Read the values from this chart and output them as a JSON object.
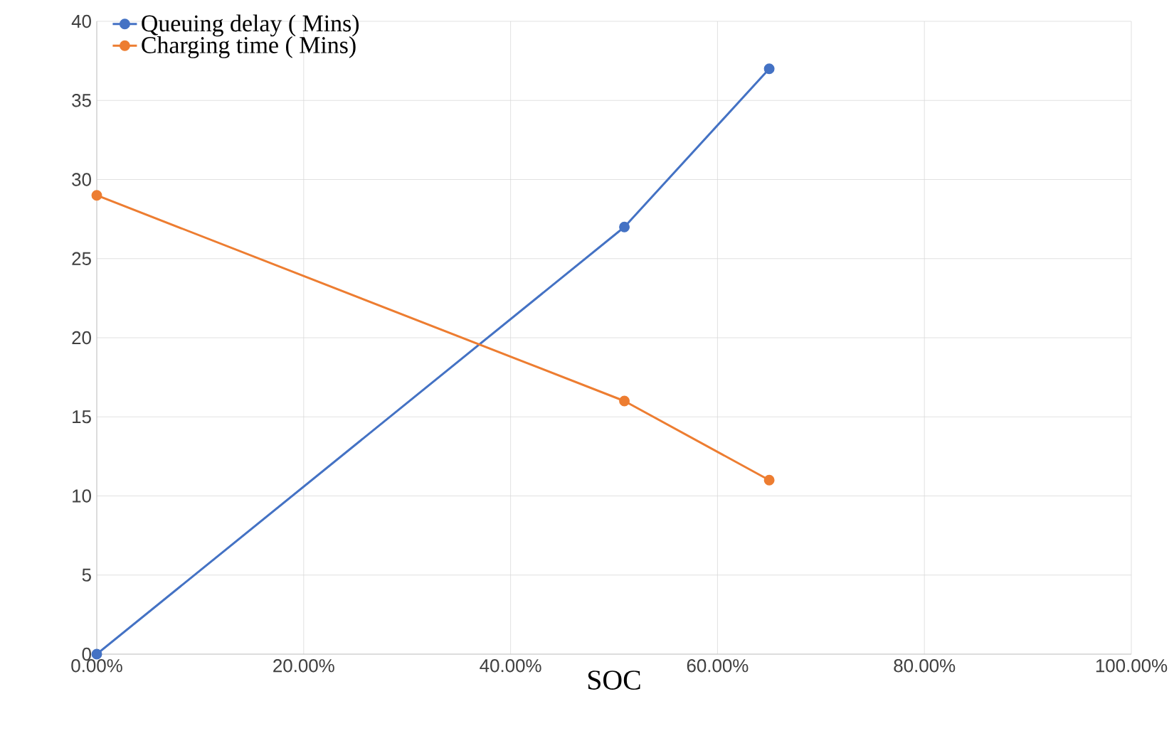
{
  "chart_data": {
    "type": "line",
    "xlabel": "SOC",
    "x": [
      0,
      0.51,
      0.65
    ],
    "series": [
      {
        "name": "Queuing delay ( Mins)",
        "color": "#4472c4",
        "values": [
          0,
          27,
          37
        ]
      },
      {
        "name": "Charging time ( Mins)",
        "color": "#ed7d31",
        "values": [
          29,
          16,
          11
        ]
      }
    ],
    "xlim": [
      0,
      1
    ],
    "xticks": [
      {
        "value": 0,
        "label": "0.00%"
      },
      {
        "value": 0.2,
        "label": "20.00%"
      },
      {
        "value": 0.4,
        "label": "40.00%"
      },
      {
        "value": 0.6,
        "label": "60.00%"
      },
      {
        "value": 0.8,
        "label": "80.00%"
      },
      {
        "value": 1,
        "label": "100.00%"
      }
    ],
    "ylim": [
      0,
      40
    ],
    "yticks": [
      0,
      5,
      10,
      15,
      20,
      25,
      30,
      35,
      40
    ],
    "grid": true,
    "legend": "top left",
    "marker": "circle",
    "line_style": "solid"
  }
}
